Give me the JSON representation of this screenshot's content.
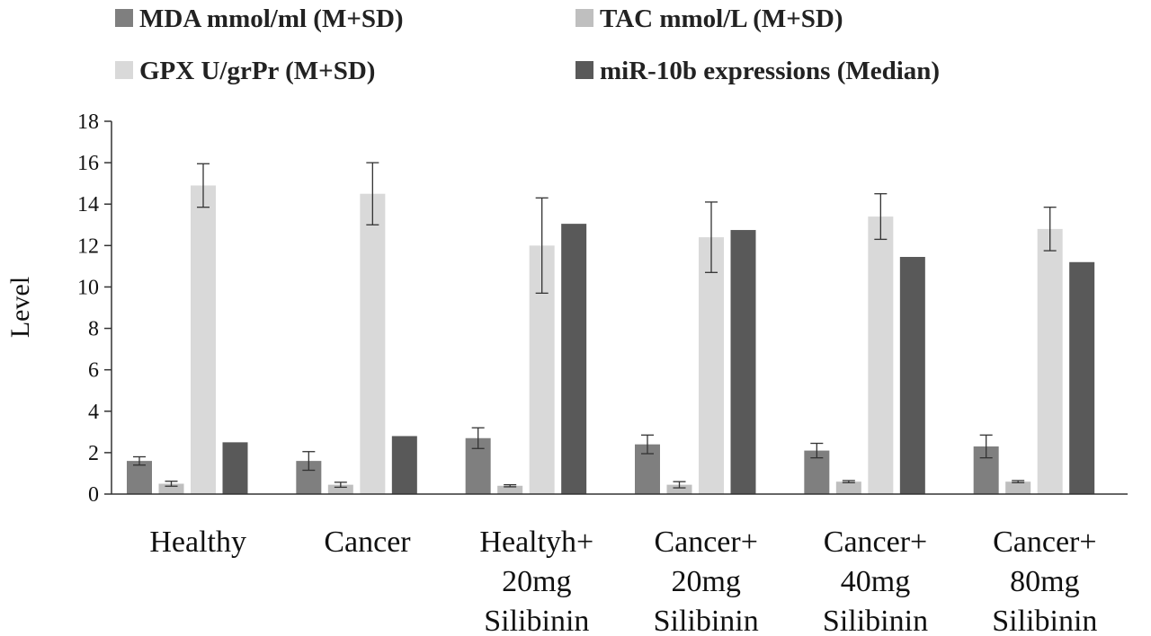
{
  "chart_data": {
    "type": "bar",
    "title": "",
    "xlabel": "",
    "ylabel": "Level",
    "ylim": [
      0,
      18
    ],
    "yticks": [
      0,
      2,
      4,
      6,
      8,
      10,
      12,
      14,
      16,
      18
    ],
    "grid": false,
    "legend_position": "top",
    "categories": [
      [
        "Healthy"
      ],
      [
        "Cancer"
      ],
      [
        "Healtyh+",
        "20mg",
        "Silibinin"
      ],
      [
        "Cancer+",
        "20mg",
        "Silibinin"
      ],
      [
        "Cancer+",
        "40mg",
        "Silibinin"
      ],
      [
        "Cancer+",
        "80mg",
        "Silibinin"
      ]
    ],
    "series": [
      {
        "name": "MDA mmol/ml (M+SD)",
        "color": "#7f7f7f",
        "values": [
          1.6,
          1.6,
          2.7,
          2.4,
          2.1,
          2.3
        ],
        "errors": [
          0.2,
          0.45,
          0.5,
          0.45,
          0.35,
          0.55
        ]
      },
      {
        "name": "TAC mmol/L (M+SD)",
        "color": "#bfbfbf",
        "values": [
          0.5,
          0.45,
          0.4,
          0.45,
          0.6,
          0.6
        ],
        "errors": [
          0.12,
          0.12,
          0.05,
          0.15,
          0.05,
          0.05
        ]
      },
      {
        "name": "GPX U/grPr (M+SD)",
        "color": "#d9d9d9",
        "values": [
          14.9,
          14.5,
          12.0,
          12.4,
          13.4,
          12.8
        ],
        "errors": [
          1.05,
          1.5,
          2.3,
          1.7,
          1.1,
          1.05
        ]
      },
      {
        "name": "miR-10b expressions (Median)",
        "color": "#595959",
        "values": [
          2.5,
          2.8,
          13.05,
          12.75,
          11.45,
          11.2
        ],
        "errors": null
      }
    ]
  }
}
